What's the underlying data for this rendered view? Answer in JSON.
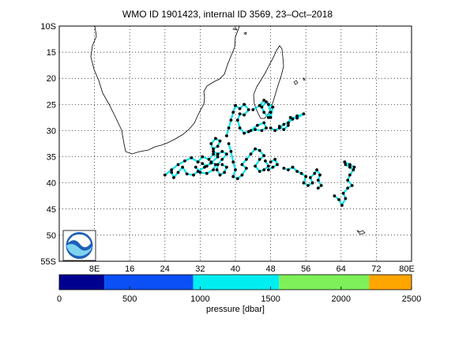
{
  "title": "WMO ID 1901423, internal ID 3569, 23–Oct–2018",
  "map": {
    "lon_range": [
      0,
      80
    ],
    "lat_range": [
      -55,
      -10
    ],
    "lat_ticks": [
      "10S",
      "15",
      "20",
      "25",
      "30",
      "35",
      "40",
      "45",
      "50",
      "55S"
    ],
    "lon_ticks": [
      "8E",
      "16",
      "24",
      "32",
      "40",
      "48",
      "56",
      "64",
      "72",
      "80E"
    ],
    "grid": true,
    "grid_style": "dotted",
    "track_color": "#00e5ee",
    "point_color": "#000000",
    "logo": "noaa-logo"
  },
  "colorbar": {
    "label": "pressure [dbar]",
    "ticks": [
      "0",
      "500",
      "1000",
      "1500",
      "2000",
      "2500"
    ],
    "range": [
      0,
      2500
    ],
    "segments": [
      {
        "from": 0,
        "to": 320,
        "color": "#000090"
      },
      {
        "from": 320,
        "to": 950,
        "color": "#0a50f5"
      },
      {
        "from": 950,
        "to": 1560,
        "color": "#00eef2"
      },
      {
        "from": 1560,
        "to": 2200,
        "color": "#7ef05a"
      },
      {
        "from": 2200,
        "to": 2500,
        "color": "#ffa500"
      }
    ]
  },
  "chart_data": {
    "type": "scatter",
    "title": "WMO ID 1901423, internal ID 3569, 23–Oct–2018",
    "xlabel": "",
    "ylabel": "",
    "xlim": [
      0,
      80
    ],
    "ylim": [
      -55,
      -10
    ],
    "tracks": [
      [
        [
          24,
          -38.5
        ],
        [
          25.5,
          -37.5
        ],
        [
          27,
          -36.5
        ],
        [
          28.5,
          -35.8
        ],
        [
          30,
          -35.2
        ],
        [
          31.5,
          -36
        ],
        [
          32.5,
          -35
        ],
        [
          34,
          -35.5
        ],
        [
          35,
          -34.5
        ],
        [
          36,
          -35
        ],
        [
          34.5,
          -36.2
        ],
        [
          33,
          -37
        ],
        [
          31.5,
          -37.8
        ],
        [
          30.5,
          -38.5
        ],
        [
          29,
          -38.3
        ],
        [
          28,
          -37
        ],
        [
          27,
          -38
        ],
        [
          26,
          -39
        ],
        [
          25.5,
          -38
        ]
      ],
      [
        [
          31,
          -37
        ],
        [
          32,
          -38
        ],
        [
          33.5,
          -38.2
        ],
        [
          35,
          -37.5
        ],
        [
          35.5,
          -36.5
        ],
        [
          34.5,
          -36
        ],
        [
          33.5,
          -36.8
        ],
        [
          32.5,
          -36.3
        ]
      ],
      [
        [
          35,
          -33.5
        ],
        [
          36,
          -33
        ],
        [
          36.5,
          -32
        ],
        [
          35.5,
          -31.5
        ],
        [
          34.5,
          -32.5
        ],
        [
          35,
          -34
        ],
        [
          36,
          -34.5
        ],
        [
          37,
          -34
        ],
        [
          38,
          -34.5
        ],
        [
          37,
          -35.5
        ],
        [
          36,
          -36.5
        ],
        [
          35.8,
          -37.5
        ],
        [
          36.5,
          -38.5
        ],
        [
          37.5,
          -38
        ],
        [
          38,
          -37
        ],
        [
          37,
          -36.5
        ]
      ],
      [
        [
          38,
          -31
        ],
        [
          38.5,
          -29.5
        ],
        [
          39,
          -28
        ],
        [
          39.5,
          -26.5
        ],
        [
          40,
          -25.2
        ],
        [
          41,
          -25.8
        ],
        [
          42,
          -25
        ],
        [
          43,
          -26
        ],
        [
          42,
          -27
        ],
        [
          41,
          -26.8
        ],
        [
          40.5,
          -28
        ],
        [
          41,
          -29.5
        ],
        [
          42,
          -30.5
        ],
        [
          43.5,
          -30
        ],
        [
          45,
          -29
        ],
        [
          46.5,
          -28.5
        ],
        [
          47,
          -29.5
        ],
        [
          46,
          -30
        ],
        [
          44.5,
          -29.8
        ],
        [
          43,
          -30.2
        ]
      ],
      [
        [
          44,
          -26
        ],
        [
          45.5,
          -25.2
        ],
        [
          46.5,
          -24.2
        ],
        [
          47.5,
          -25
        ],
        [
          48,
          -26.5
        ],
        [
          47.5,
          -27.5
        ],
        [
          46.5,
          -26.5
        ],
        [
          46,
          -25.5
        ],
        [
          47,
          -24.5
        ],
        [
          48.5,
          -25.5
        ],
        [
          48,
          -27.5
        ]
      ],
      [
        [
          48,
          -29.5
        ],
        [
          49,
          -30
        ],
        [
          50,
          -29.5
        ],
        [
          51,
          -28.8
        ],
        [
          52,
          -28.5
        ],
        [
          53,
          -27.8
        ],
        [
          54,
          -27.2
        ],
        [
          55.5,
          -26.8
        ],
        [
          54,
          -27.6
        ],
        [
          52.5,
          -27.5
        ],
        [
          52,
          -29
        ],
        [
          51,
          -29.8
        ],
        [
          50,
          -29.2
        ]
      ],
      [
        [
          38.5,
          -32.5
        ],
        [
          39,
          -34
        ],
        [
          39.5,
          -36
        ],
        [
          40,
          -37.5
        ],
        [
          39.5,
          -38.8
        ],
        [
          40.5,
          -39.2
        ],
        [
          41.5,
          -38.5
        ],
        [
          42.5,
          -37.2
        ],
        [
          41.5,
          -36.5
        ],
        [
          42.5,
          -35.5
        ],
        [
          43.5,
          -34.5
        ],
        [
          44.5,
          -33.5
        ],
        [
          45.5,
          -33.8
        ],
        [
          46.5,
          -34.8
        ],
        [
          45.5,
          -35.5
        ],
        [
          44.5,
          -36.8
        ],
        [
          45.5,
          -37.8
        ],
        [
          46.5,
          -37.5
        ],
        [
          47.5,
          -36.8
        ],
        [
          46.8,
          -35.8
        ]
      ],
      [
        [
          47.5,
          -37.5
        ],
        [
          48.5,
          -37
        ],
        [
          49.5,
          -36.5
        ],
        [
          49,
          -35.5
        ],
        [
          48,
          -36
        ]
      ],
      [
        [
          51,
          -37.2
        ],
        [
          52,
          -37.5
        ],
        [
          53,
          -37
        ],
        [
          54,
          -37.8
        ],
        [
          55,
          -38.2
        ],
        [
          56,
          -38.8
        ],
        [
          55.5,
          -40
        ],
        [
          56.5,
          -40.5
        ],
        [
          57.5,
          -40
        ],
        [
          57,
          -39
        ],
        [
          58,
          -38.2
        ],
        [
          58.5,
          -37.5
        ],
        [
          59.2,
          -38.5
        ],
        [
          58.8,
          -39.5
        ],
        [
          59.5,
          -40.5
        ],
        [
          58.8,
          -41
        ]
      ],
      [
        [
          62.5,
          -42.5
        ],
        [
          63.5,
          -43.2
        ],
        [
          64.2,
          -44.3
        ],
        [
          65,
          -43
        ],
        [
          64.5,
          -42
        ],
        [
          65.5,
          -41
        ],
        [
          66.5,
          -40.5
        ],
        [
          65.5,
          -39.5
        ],
        [
          66,
          -38.5
        ],
        [
          66.8,
          -37.5
        ],
        [
          66,
          -37
        ],
        [
          65,
          -36.5
        ],
        [
          64.8,
          -36
        ],
        [
          66,
          -36.5
        ],
        [
          67,
          -37
        ]
      ]
    ]
  }
}
